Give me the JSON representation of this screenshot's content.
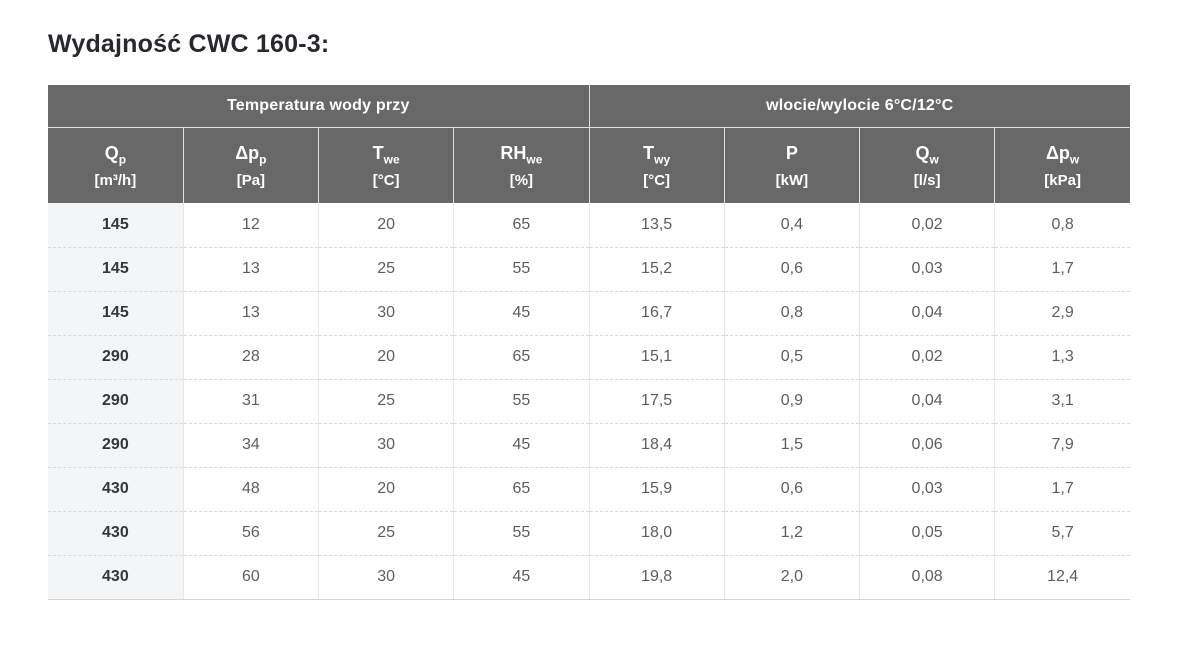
{
  "page": {
    "title": "Wydajność CWC 160-3:"
  },
  "table": {
    "group_headers": [
      {
        "label": "Temperatura wody przy"
      },
      {
        "label": "wlocie/wylocie 6°C/12°C"
      }
    ],
    "columns": [
      {
        "base": "Q",
        "sub": "p",
        "unit": "[m³/h]"
      },
      {
        "base": "Δp",
        "sub": "p",
        "unit": "[Pa]"
      },
      {
        "base": "T",
        "sub": "we",
        "unit": "[°C]"
      },
      {
        "base": "RH",
        "sub": "we",
        "unit": "[%]"
      },
      {
        "base": "T",
        "sub": "wy",
        "unit": "[°C]"
      },
      {
        "base": "P",
        "sub": "",
        "unit": "[kW]"
      },
      {
        "base": "Q",
        "sub": "w",
        "unit": "[l/s]"
      },
      {
        "base": "Δp",
        "sub": "w",
        "unit": "[kPa]"
      }
    ],
    "rows": [
      [
        "145",
        "12",
        "20",
        "65",
        "13,5",
        "0,4",
        "0,02",
        "0,8"
      ],
      [
        "145",
        "13",
        "25",
        "55",
        "15,2",
        "0,6",
        "0,03",
        "1,7"
      ],
      [
        "145",
        "13",
        "30",
        "45",
        "16,7",
        "0,8",
        "0,04",
        "2,9"
      ],
      [
        "290",
        "28",
        "20",
        "65",
        "15,1",
        "0,5",
        "0,02",
        "1,3"
      ],
      [
        "290",
        "31",
        "25",
        "55",
        "17,5",
        "0,9",
        "0,04",
        "3,1"
      ],
      [
        "290",
        "34",
        "30",
        "45",
        "18,4",
        "1,5",
        "0,06",
        "7,9"
      ],
      [
        "430",
        "48",
        "20",
        "65",
        "15,9",
        "0,6",
        "0,03",
        "1,7"
      ],
      [
        "430",
        "56",
        "25",
        "55",
        "18,0",
        "1,2",
        "0,05",
        "5,7"
      ],
      [
        "430",
        "60",
        "30",
        "45",
        "19,8",
        "2,0",
        "0,08",
        "12,4"
      ]
    ]
  },
  "colors": {
    "header_bg": "#686868",
    "header_text": "#ffffff",
    "first_col_bg": "#f4f5f7",
    "first_col_text": "#34363b",
    "cell_text": "#5b5d62",
    "title_text": "#26282d",
    "border_solid": "#e6e6e6",
    "border_dashed": "#d8d8d8"
  }
}
